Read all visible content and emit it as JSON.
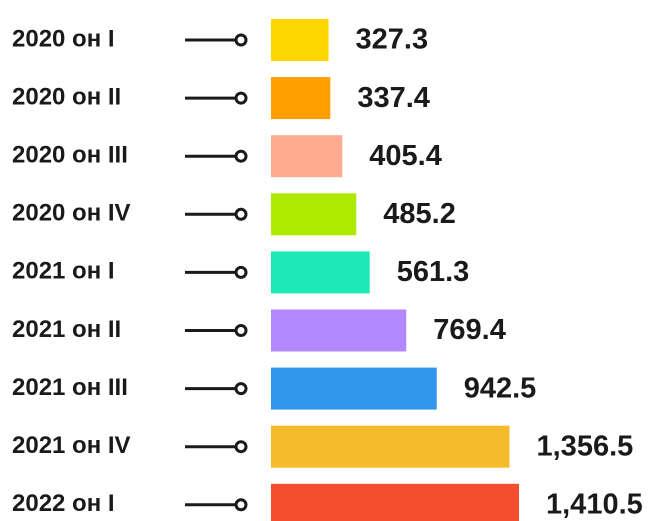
{
  "chart_data": {
    "type": "bar",
    "orientation": "horizontal",
    "categories": [
      "2020 он I",
      "2020 он II",
      "2020 он III",
      "2020 он IV",
      "2021 он I",
      "2021 он II",
      "2021 он III",
      "2021 он IV",
      "2022 он I"
    ],
    "values": [
      327.3,
      337.4,
      405.4,
      485.2,
      561.3,
      769.4,
      942.5,
      1356.5,
      1410.5
    ],
    "value_labels": [
      "327.3",
      "337.4",
      "405.4",
      "485.2",
      "561.3",
      "769.4",
      "942.5",
      "1,356.5",
      "1,410.5"
    ],
    "colors": [
      "#FFD600",
      "#FF9F00",
      "#FFAB91",
      "#AEEA00",
      "#1DE9B6",
      "#B388FF",
      "#2F96EB",
      "#F6BB2A",
      "#F44E2E"
    ]
  }
}
